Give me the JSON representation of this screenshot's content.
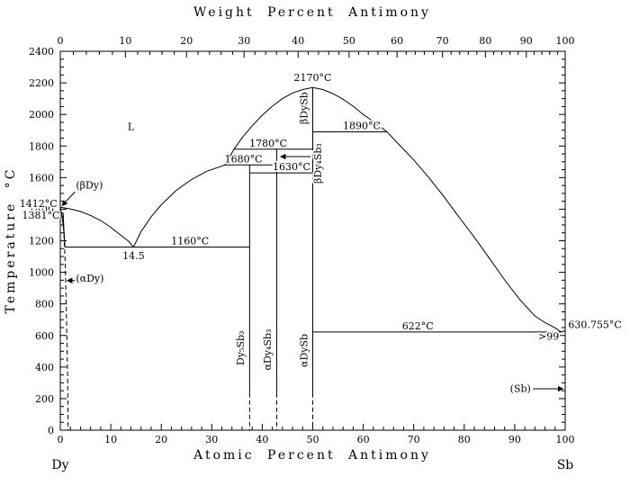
{
  "chart_data": {
    "type": "line",
    "title_top_axis": "Weight Percent Antimony",
    "xlabel": "Atomic Percent Antimony",
    "ylabel": "Temperature °C",
    "left_end_label": "Dy",
    "right_end_label": "Sb",
    "xlim": [
      0,
      100
    ],
    "ylim": [
      0,
      2400
    ],
    "x_major_ticks": [
      0,
      10,
      20,
      30,
      40,
      50,
      60,
      70,
      80,
      90,
      100
    ],
    "y_major_ticks": [
      0,
      200,
      400,
      600,
      800,
      1000,
      1200,
      1400,
      1600,
      1800,
      2000,
      2200,
      2400
    ],
    "top_axis_ticks": [
      {
        "label": "0",
        "at_pct": 0
      },
      {
        "label": "10",
        "at_pct": 12.9
      },
      {
        "label": "20",
        "at_pct": 25.0
      },
      {
        "label": "30",
        "at_pct": 36.4
      },
      {
        "label": "40",
        "at_pct": 47.1
      },
      {
        "label": "50",
        "at_pct": 57.2
      },
      {
        "label": "60",
        "at_pct": 66.7
      },
      {
        "label": "70",
        "at_pct": 75.7
      },
      {
        "label": "80",
        "at_pct": 84.2
      },
      {
        "label": "90",
        "at_pct": 92.3
      },
      {
        "label": "100",
        "at_pct": 100
      }
    ],
    "curves": [
      {
        "name": "liquidus-dy-side",
        "style": "solid",
        "points": [
          [
            0,
            1412
          ],
          [
            2,
            1402
          ],
          [
            4,
            1385
          ],
          [
            6,
            1360
          ],
          [
            8,
            1328
          ],
          [
            10,
            1285
          ],
          [
            12,
            1235
          ],
          [
            13.5,
            1198
          ],
          [
            14.5,
            1160
          ]
        ]
      },
      {
        "name": "liquidus-rising",
        "style": "solid",
        "points": [
          [
            14.5,
            1160
          ],
          [
            16,
            1258
          ],
          [
            18,
            1352
          ],
          [
            20,
            1428
          ],
          [
            23,
            1520
          ],
          [
            26,
            1588
          ],
          [
            29,
            1640
          ],
          [
            32.6,
            1680
          ],
          [
            33.5,
            1728
          ],
          [
            34.4,
            1780
          ],
          [
            36,
            1852
          ],
          [
            38,
            1928
          ],
          [
            40,
            1995
          ],
          [
            42,
            2052
          ],
          [
            44,
            2100
          ],
          [
            46,
            2136
          ],
          [
            48,
            2158
          ],
          [
            50,
            2170
          ]
        ]
      },
      {
        "name": "liquidus-sb-side",
        "style": "solid",
        "points": [
          [
            50,
            2170
          ],
          [
            52,
            2158
          ],
          [
            54,
            2132
          ],
          [
            56,
            2096
          ],
          [
            58,
            2052
          ],
          [
            60,
            2000
          ],
          [
            62.5,
            1944
          ],
          [
            64.7,
            1890
          ],
          [
            67,
            1812
          ],
          [
            70,
            1712
          ],
          [
            73,
            1600
          ],
          [
            76,
            1478
          ],
          [
            79,
            1348
          ],
          [
            82,
            1222
          ],
          [
            85,
            1088
          ],
          [
            88,
            952
          ],
          [
            91,
            828
          ],
          [
            94,
            724
          ],
          [
            96,
            681
          ],
          [
            98,
            648
          ],
          [
            99.2,
            622
          ]
        ]
      },
      {
        "name": "sb-liquidus-tail",
        "style": "solid",
        "points": [
          [
            99.2,
            622
          ],
          [
            100,
            630.755
          ]
        ]
      },
      {
        "name": "beta-dy-solidus",
        "style": "solid",
        "points": [
          [
            0,
            1412
          ],
          [
            0.45,
            1330
          ],
          [
            0.75,
            1245
          ],
          [
            0.9,
            1160
          ]
        ]
      },
      {
        "name": "beta-alpha-dy-boundary",
        "style": "solid",
        "points": [
          [
            0,
            1381
          ],
          [
            0.55,
            1374
          ],
          [
            0.9,
            1160
          ]
        ]
      },
      {
        "name": "alpha-dy-solvus",
        "style": "dashed",
        "points": [
          [
            0.55,
            1374
          ],
          [
            0.95,
            1080
          ],
          [
            1.2,
            760
          ],
          [
            1.45,
            360
          ],
          [
            1.55,
            0
          ]
        ]
      }
    ],
    "isotherms": [
      {
        "temp_c": 1160,
        "from_at": 0.9,
        "to_at": 37.5,
        "label": "1160°C",
        "label_at": 25.7
      },
      {
        "temp_c": 1680,
        "from_at": 32.6,
        "to_at": 42.86,
        "label": "1680°C",
        "label_at": 36.3
      },
      {
        "temp_c": 1780,
        "from_at": 34.4,
        "to_at": 50,
        "label": "1780°C",
        "label_at": 41.2
      },
      {
        "temp_c": 1630,
        "from_at": 37.5,
        "to_at": 50,
        "label": "1630°C",
        "label_at": 45.8
      },
      {
        "temp_c": 1890,
        "from_at": 50,
        "to_at": 64.7,
        "label": "1890°C",
        "label_at": 59.7
      },
      {
        "temp_c": 622,
        "from_at": 50,
        "to_at": 99.2,
        "label": "622°C",
        "label_at": 70.8
      }
    ],
    "compound_lines": [
      {
        "at_pct": 37.5,
        "top_c": 1680,
        "solid_to_c": 235,
        "dash_to_c": 0
      },
      {
        "at_pct": 42.86,
        "top_c": 1780,
        "solid_to_c": 235,
        "dash_to_c": 0
      },
      {
        "at_pct": 50,
        "top_c": 2170,
        "solid_to_c": 235,
        "dash_to_c": 0
      }
    ],
    "phase_labels": [
      {
        "text": "Dy₅Sb₃",
        "at_pct": 36.4,
        "temp_c": 520
      },
      {
        "text": "αDy₄Sb₃",
        "at_pct": 41.75,
        "temp_c": 510
      },
      {
        "text": "αDySb",
        "at_pct": 48.9,
        "temp_c": 505
      },
      {
        "text": "βDySb",
        "at_pct": 48.9,
        "temp_c": 2040
      },
      {
        "text": "βDy₄Sb₃",
        "at_pct": 51.7,
        "temp_c": 1690
      }
    ],
    "point_labels": [
      {
        "text": "L",
        "at_pct": 14,
        "temp_c": 1900,
        "anchor": "middle",
        "size": 17
      },
      {
        "text": "2170°C",
        "at_pct": 50,
        "temp_c": 2212,
        "anchor": "middle"
      },
      {
        "text": "14.5",
        "at_pct": 14.5,
        "temp_c": 1082,
        "anchor": "middle"
      },
      {
        "text": "630.755°C",
        "at_pct": 100.6,
        "temp_c": 648,
        "anchor": "start"
      },
      {
        "text": ">99",
        "at_pct": 98.8,
        "temp_c": 572,
        "anchor": "end"
      },
      {
        "text": "1412°C",
        "at_pct": -0.6,
        "temp_c": 1415,
        "anchor": "end"
      },
      {
        "text": "1381°C",
        "at_pct": -0.1,
        "temp_c": 1340,
        "anchor": "end"
      },
      {
        "text": "(βDy)",
        "at_pct": 3.1,
        "temp_c": 1530,
        "anchor": "start"
      },
      {
        "text": "(αDy)",
        "at_pct": 3.1,
        "temp_c": 940,
        "anchor": "start"
      },
      {
        "text": "(Sb)",
        "at_pct": 93.2,
        "temp_c": 242,
        "anchor": "end"
      }
    ],
    "arrows": [
      {
        "name": "beta-dy4sb3-pointer",
        "from": [
          49.6,
          1733
        ],
        "to": [
          43.6,
          1733
        ],
        "dashed": false
      },
      {
        "name": "beta-dy-pointer",
        "from": [
          2.9,
          1510
        ],
        "to": [
          0.35,
          1422
        ],
        "dashed": false
      },
      {
        "name": "alpha-dy-pointer",
        "from": [
          2.9,
          948
        ],
        "to": [
          1.35,
          948
        ],
        "dashed": true
      },
      {
        "name": "sb-pointer",
        "from": [
          93.6,
          262
        ],
        "to": [
          99.6,
          262
        ],
        "dashed": false
      }
    ]
  }
}
